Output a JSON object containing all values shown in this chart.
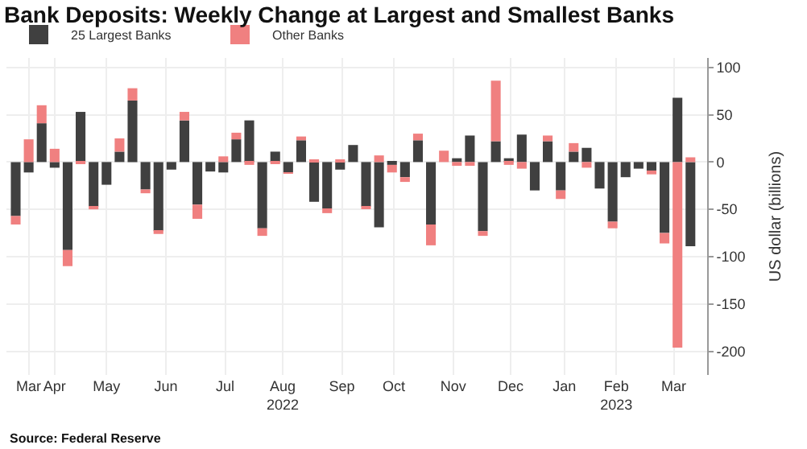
{
  "chart_data": {
    "type": "bar",
    "stacked": true,
    "title": "Bank Deposits: Weekly Change at Largest and Smallest Banks",
    "ylabel": "US dollar (billions)",
    "annotations": [
      "Source: Federal Reserve"
    ],
    "x": [
      "2022-03-16",
      "2022-03-23",
      "2022-03-30",
      "2022-04-06",
      "2022-04-13",
      "2022-04-20",
      "2022-04-27",
      "2022-05-04",
      "2022-05-11",
      "2022-05-18",
      "2022-05-25",
      "2022-06-01",
      "2022-06-08",
      "2022-06-15",
      "2022-06-22",
      "2022-06-29",
      "2022-07-06",
      "2022-07-13",
      "2022-07-20",
      "2022-07-27",
      "2022-08-03",
      "2022-08-10",
      "2022-08-17",
      "2022-08-24",
      "2022-08-31",
      "2022-09-07",
      "2022-09-14",
      "2022-09-21",
      "2022-09-28",
      "2022-10-05",
      "2022-10-12",
      "2022-10-19",
      "2022-10-26",
      "2022-11-02",
      "2022-11-09",
      "2022-11-16",
      "2022-11-23",
      "2022-11-30",
      "2022-12-07",
      "2022-12-14",
      "2022-12-21",
      "2022-12-28",
      "2023-01-04",
      "2023-01-11",
      "2023-01-18",
      "2023-01-25",
      "2023-02-01",
      "2023-02-08",
      "2023-02-15",
      "2023-02-22",
      "2023-03-01",
      "2023-03-08",
      "2023-03-15"
    ],
    "series": [
      {
        "name": "25 Largest Banks",
        "color": "#404040",
        "values": [
          -57,
          -11,
          41,
          -6,
          -93,
          53,
          -47,
          -24,
          11,
          65,
          -29,
          -73,
          -8,
          44,
          -45,
          -10,
          -11,
          24,
          44,
          -70,
          11,
          -11,
          23,
          -42,
          -49,
          -8,
          18,
          -47,
          -69,
          -3,
          -16,
          23,
          -66,
          0,
          4,
          28,
          -73,
          22,
          4,
          29,
          -30,
          22,
          -30,
          11,
          15,
          -28,
          -63,
          -16,
          -7,
          -9,
          -75,
          68,
          -89
        ]
      },
      {
        "name": "Other Banks",
        "color": "#f08080",
        "values": [
          -9,
          24,
          19,
          14,
          -17,
          -2,
          -3,
          0,
          14,
          13,
          -4,
          -3,
          0,
          9,
          -15,
          0,
          6,
          7,
          -3,
          -8,
          -2,
          -1,
          4,
          2,
          -5,
          2,
          0,
          -2,
          7,
          -8,
          -5,
          7,
          -22,
          12,
          -4,
          -4,
          -5,
          64,
          -3,
          -7,
          0,
          6,
          -9,
          9,
          -6,
          0,
          -7,
          0,
          0,
          -4,
          -11,
          -196,
          5
        ]
      }
    ],
    "xlim": [
      "2022-03-11",
      "2023-03-24"
    ],
    "xticks": [
      {
        "value": "2022-03-23",
        "label": "Mar"
      },
      {
        "value": "2022-04-06",
        "label": "Apr"
      },
      {
        "value": "2022-05-04",
        "label": "May"
      },
      {
        "value": "2022-06-05",
        "label": "Jun"
      },
      {
        "value": "2022-07-07",
        "label": "Jul"
      },
      {
        "value": "2022-08-07",
        "label": "Aug\n2022"
      },
      {
        "value": "2022-09-08",
        "label": "Sep"
      },
      {
        "value": "2022-10-06",
        "label": "Oct"
      },
      {
        "value": "2022-11-07",
        "label": "Nov"
      },
      {
        "value": "2022-12-08",
        "label": "Dec"
      },
      {
        "value": "2023-01-06",
        "label": "Jan"
      },
      {
        "value": "2023-02-03",
        "label": "Feb\n2023"
      },
      {
        "value": "2023-03-06",
        "label": "Mar"
      }
    ],
    "ylim": [
      -225,
      110
    ],
    "yticks": [
      -200,
      -150,
      -100,
      -50,
      0,
      50,
      100
    ],
    "grid": true,
    "legend": "top left"
  }
}
